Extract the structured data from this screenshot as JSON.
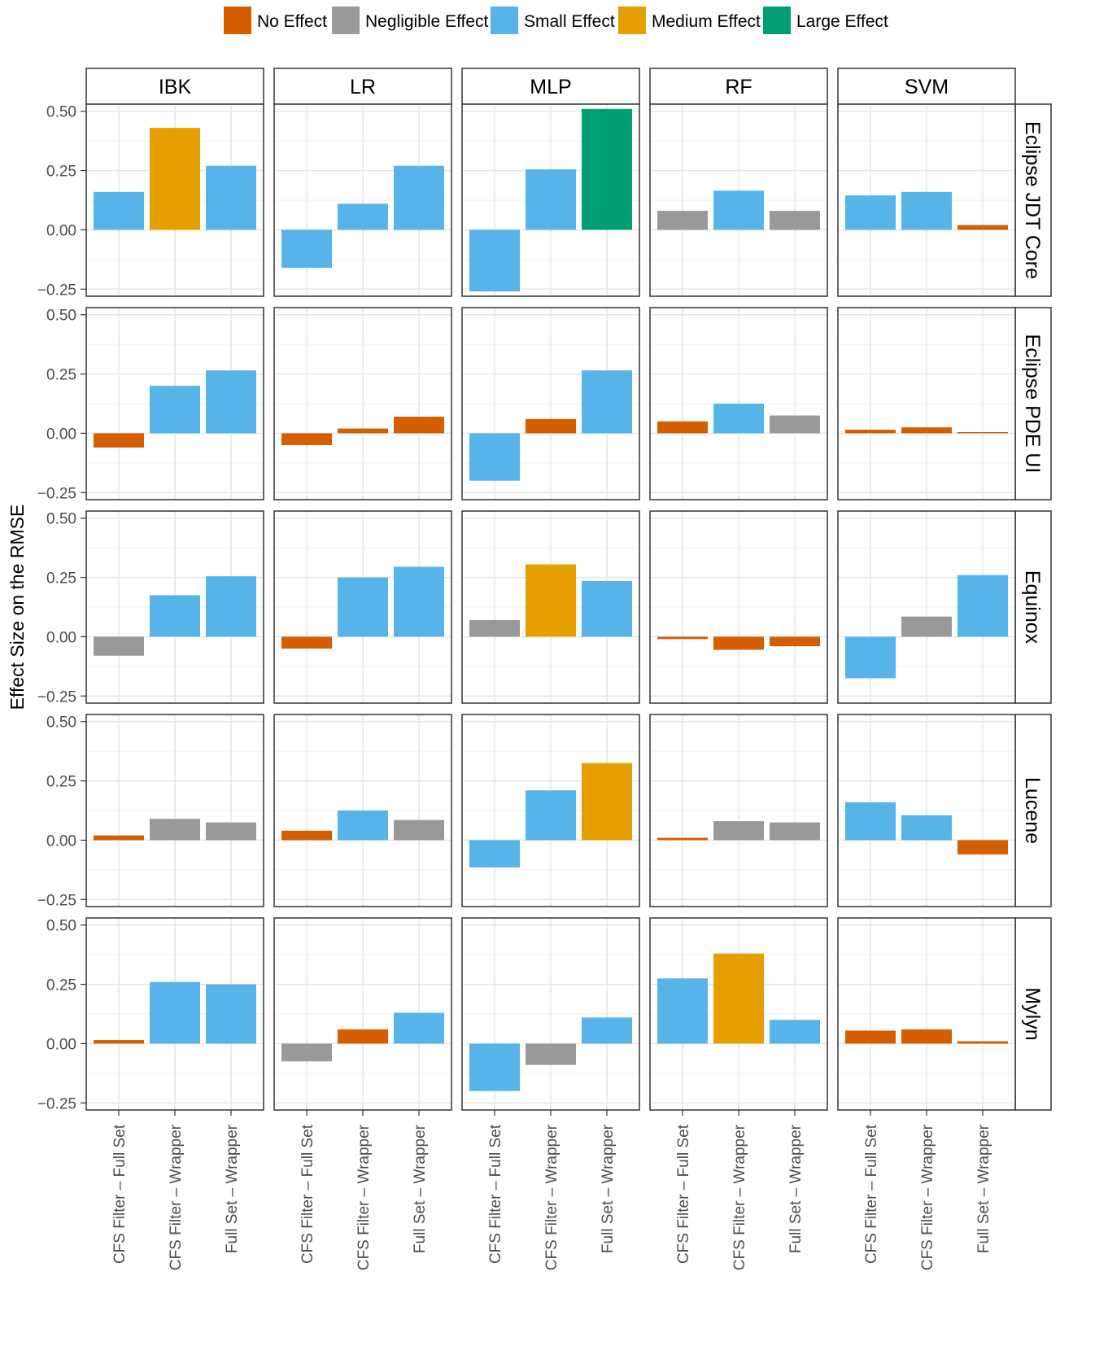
{
  "chart_data": {
    "type": "bar",
    "chart_kind": "faceted bar chart",
    "ylabel": "Effect Size on the RMSE",
    "xlabel": "",
    "ylim": [
      -0.28,
      0.53
    ],
    "yticks": [
      -0.25,
      0.0,
      0.25,
      0.5
    ],
    "ytick_labels": [
      "−0.25",
      "0.00",
      "0.25",
      "0.50"
    ],
    "grid": true,
    "legend_position": "top",
    "legend": [
      {
        "key": "no",
        "label": "No Effect",
        "color": "#D55E00"
      },
      {
        "key": "negligible",
        "label": "Negligible Effect",
        "color": "#999999"
      },
      {
        "key": "small",
        "label": "Small Effect",
        "color": "#56B4E9"
      },
      {
        "key": "medium",
        "label": "Medium Effect",
        "color": "#E69F00"
      },
      {
        "key": "large",
        "label": "Large Effect",
        "color": "#009E73"
      }
    ],
    "columns": [
      "IBK",
      "LR",
      "MLP",
      "RF",
      "SVM"
    ],
    "rows": [
      "Eclipse JDT Core",
      "Eclipse PDE UI",
      "Equinox",
      "Lucene",
      "Mylyn"
    ],
    "categories": [
      "CFS Filter – Full Set",
      "CFS Filter – Wrapper",
      "Full Set – Wrapper"
    ],
    "panels": [
      [
        {
          "values": [
            0.16,
            0.43,
            0.27
          ],
          "effects": [
            "small",
            "medium",
            "small"
          ]
        },
        {
          "values": [
            -0.16,
            0.11,
            0.27
          ],
          "effects": [
            "small",
            "small",
            "small"
          ]
        },
        {
          "values": [
            -0.26,
            0.255,
            0.51
          ],
          "effects": [
            "small",
            "small",
            "large"
          ]
        },
        {
          "values": [
            0.08,
            0.165,
            0.08
          ],
          "effects": [
            "negligible",
            "small",
            "negligible"
          ]
        },
        {
          "values": [
            0.145,
            0.16,
            0.02
          ],
          "effects": [
            "small",
            "small",
            "no"
          ]
        }
      ],
      [
        {
          "values": [
            -0.06,
            0.2,
            0.265
          ],
          "effects": [
            "no",
            "small",
            "small"
          ]
        },
        {
          "values": [
            -0.05,
            0.02,
            0.07
          ],
          "effects": [
            "no",
            "no",
            "no"
          ]
        },
        {
          "values": [
            -0.2,
            0.06,
            0.265
          ],
          "effects": [
            "small",
            "no",
            "small"
          ]
        },
        {
          "values": [
            0.05,
            0.125,
            0.075
          ],
          "effects": [
            "no",
            "small",
            "negligible"
          ]
        },
        {
          "values": [
            0.015,
            0.025,
            0.005
          ],
          "effects": [
            "no",
            "no",
            "no"
          ]
        }
      ],
      [
        {
          "values": [
            -0.08,
            0.175,
            0.255
          ],
          "effects": [
            "negligible",
            "small",
            "small"
          ]
        },
        {
          "values": [
            -0.05,
            0.25,
            0.295
          ],
          "effects": [
            "no",
            "small",
            "small"
          ]
        },
        {
          "values": [
            0.07,
            0.305,
            0.235
          ],
          "effects": [
            "negligible",
            "medium",
            "small"
          ]
        },
        {
          "values": [
            -0.01,
            -0.055,
            -0.04
          ],
          "effects": [
            "no",
            "no",
            "no"
          ]
        },
        {
          "values": [
            -0.175,
            0.085,
            0.26
          ],
          "effects": [
            "small",
            "negligible",
            "small"
          ]
        }
      ],
      [
        {
          "values": [
            0.02,
            0.09,
            0.075
          ],
          "effects": [
            "no",
            "negligible",
            "negligible"
          ]
        },
        {
          "values": [
            0.04,
            0.125,
            0.085
          ],
          "effects": [
            "no",
            "small",
            "negligible"
          ]
        },
        {
          "values": [
            -0.115,
            0.21,
            0.325
          ],
          "effects": [
            "small",
            "small",
            "medium"
          ]
        },
        {
          "values": [
            0.01,
            0.08,
            0.075
          ],
          "effects": [
            "no",
            "negligible",
            "negligible"
          ]
        },
        {
          "values": [
            0.16,
            0.105,
            -0.06
          ],
          "effects": [
            "small",
            "small",
            "no"
          ]
        }
      ],
      [
        {
          "values": [
            0.015,
            0.26,
            0.25
          ],
          "effects": [
            "no",
            "small",
            "small"
          ]
        },
        {
          "values": [
            -0.075,
            0.06,
            0.13
          ],
          "effects": [
            "negligible",
            "no",
            "small"
          ]
        },
        {
          "values": [
            -0.2,
            -0.09,
            0.11
          ],
          "effects": [
            "small",
            "negligible",
            "small"
          ]
        },
        {
          "values": [
            0.275,
            0.38,
            0.1
          ],
          "effects": [
            "small",
            "medium",
            "small"
          ]
        },
        {
          "values": [
            0.055,
            0.06,
            0.01
          ],
          "effects": [
            "no",
            "no",
            "no"
          ]
        }
      ]
    ]
  }
}
